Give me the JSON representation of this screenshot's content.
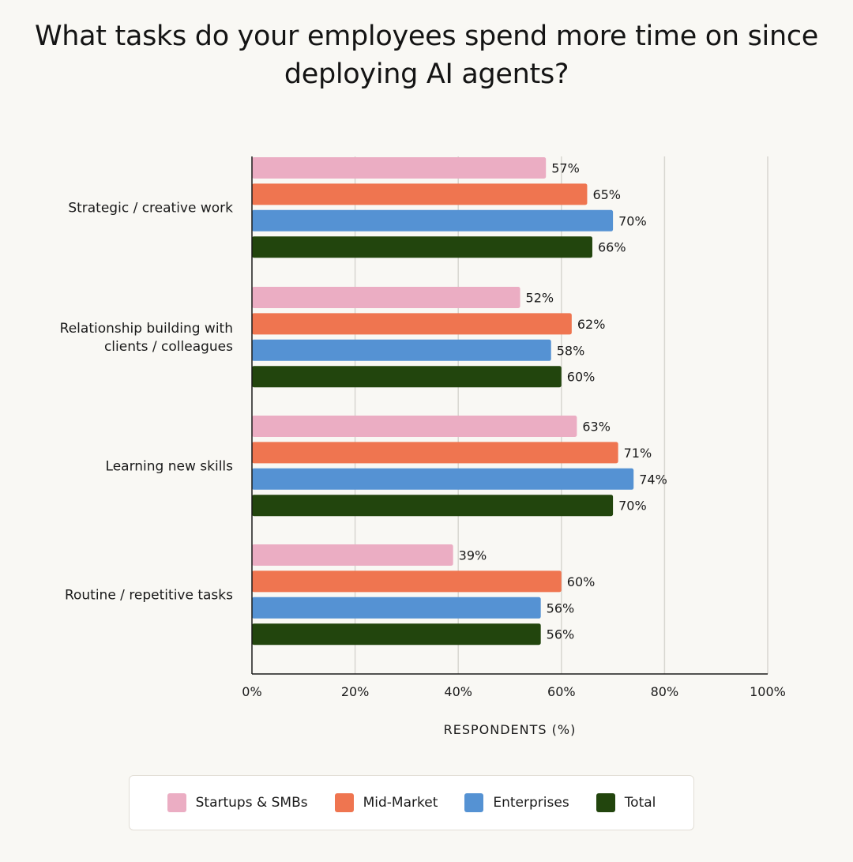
{
  "chart_data": {
    "type": "bar",
    "orientation": "horizontal",
    "title": "What tasks do your employees spend more time on since deploying AI agents?",
    "xlabel": "RESPONDENTS (%)",
    "ylabel": "",
    "xlim": [
      0,
      100
    ],
    "xticks": [
      0,
      20,
      40,
      60,
      80,
      100
    ],
    "xtick_labels": [
      "0%",
      "20%",
      "40%",
      "60%",
      "80%",
      "100%"
    ],
    "grid": true,
    "legend_position": "bottom",
    "categories": [
      [
        "Strategic / creative work"
      ],
      [
        "Relationship building with",
        "clients / colleagues"
      ],
      [
        "Learning new skills"
      ],
      [
        "Routine / repetitive tasks"
      ]
    ],
    "series": [
      {
        "name": "Startups & SMBs",
        "color": "#ebadc3",
        "values": [
          57,
          52,
          63,
          39
        ]
      },
      {
        "name": "Mid-Market",
        "color": "#ef7550",
        "values": [
          65,
          62,
          71,
          60
        ]
      },
      {
        "name": "Enterprises",
        "color": "#5592d3",
        "values": [
          70,
          58,
          74,
          56
        ]
      },
      {
        "name": "Total",
        "color": "#22450d",
        "values": [
          66,
          60,
          70,
          56
        ]
      }
    ],
    "value_suffix": "%"
  }
}
